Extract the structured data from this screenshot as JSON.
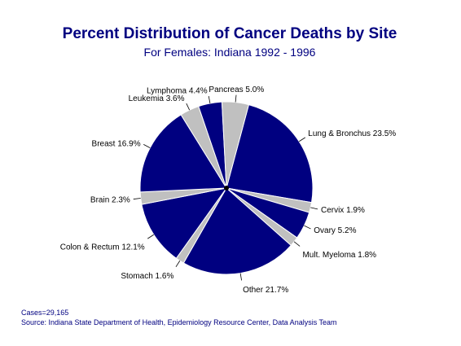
{
  "chart_data": {
    "type": "pie",
    "title": "Percent Distribution of Cancer Deaths by Site",
    "subtitle": "For Females:  Indiana 1992 - 1996",
    "slices": [
      {
        "label": "Lung & Bronchus  23.5%",
        "value": 23.5,
        "color": "#000080"
      },
      {
        "label": "Cervix  1.9%",
        "value": 1.9,
        "color": "#c0c0c0"
      },
      {
        "label": "Ovary  5.2%",
        "value": 5.2,
        "color": "#000080"
      },
      {
        "label": "Mult. Myeloma  1.8%",
        "value": 1.8,
        "color": "#c0c0c0"
      },
      {
        "label": "Other  21.7%",
        "value": 21.7,
        "color": "#000080"
      },
      {
        "label": "Stomach  1.6%",
        "value": 1.6,
        "color": "#c0c0c0"
      },
      {
        "label": "Colon & Rectum  12.1%",
        "value": 12.1,
        "color": "#000080"
      },
      {
        "label": "Brain  2.3%",
        "value": 2.3,
        "color": "#c0c0c0"
      },
      {
        "label": "Breast  16.9%",
        "value": 16.9,
        "color": "#000080"
      },
      {
        "label": "Leukemia  3.6%",
        "value": 3.6,
        "color": "#c0c0c0"
      },
      {
        "label": "Lymphoma  4.4%",
        "value": 4.4,
        "color": "#000080"
      },
      {
        "label": "Pancreas  5.0%",
        "value": 5.0,
        "color": "#c0c0c0"
      }
    ]
  },
  "footer": {
    "cases": "Cases=29,165",
    "source": "Source:  Indiana State Department of Health, Epidemiology Resource Center, Data Analysis Team"
  }
}
